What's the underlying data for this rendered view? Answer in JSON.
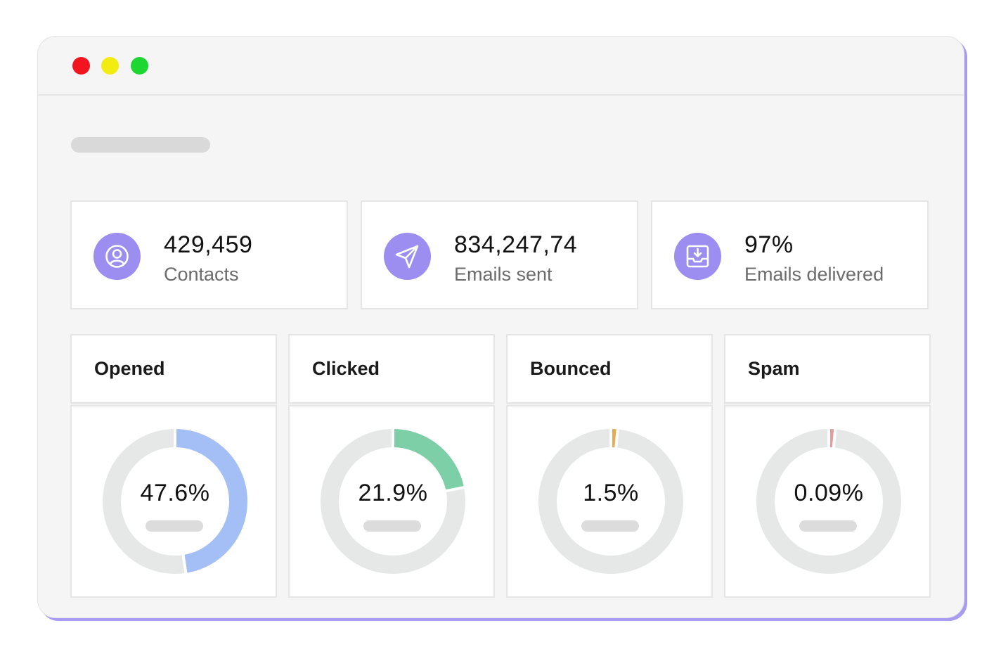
{
  "window": {
    "controls": {
      "close_color": "#f2141f",
      "minimize_color": "#f2ec11",
      "maximize_color": "#1ed632"
    },
    "accent_color": "#a89cf0"
  },
  "stats": [
    {
      "value": "429,459",
      "label": "Contacts",
      "icon": "user-circle-icon",
      "icon_color": "#9b8ef0"
    },
    {
      "value": "834,247,74",
      "label": "Emails sent",
      "icon": "paper-plane-icon",
      "icon_color": "#9b8ef0"
    },
    {
      "value": "97%",
      "label": "Emails delivered",
      "icon": "inbox-download-icon",
      "icon_color": "#9b8ef0"
    }
  ],
  "metrics": [
    {
      "title": "Opened",
      "value_label": "47.6%",
      "percent": 47.6,
      "color": "#a4bff5"
    },
    {
      "title": "Clicked",
      "value_label": "21.9%",
      "percent": 21.9,
      "color": "#7ccfa6"
    },
    {
      "title": "Bounced",
      "value_label": "1.5%",
      "percent": 1.5,
      "color": "#e3ad56"
    },
    {
      "title": "Spam",
      "value_label": "0.09%",
      "percent": 0.09,
      "color": "#e89a9a"
    }
  ],
  "donut_track_color": "#e6e8e8"
}
